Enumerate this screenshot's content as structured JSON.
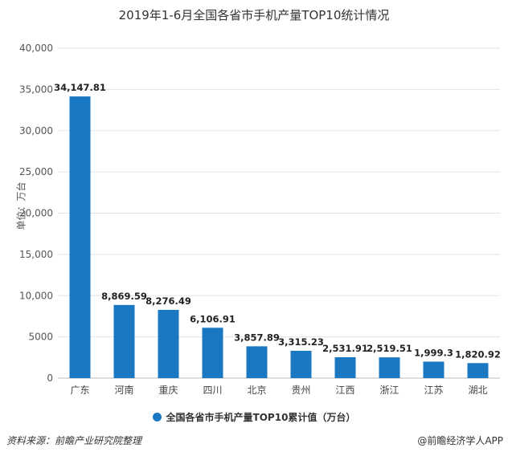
{
  "chart_data": {
    "type": "bar",
    "title": "2019年1-6月全国各省市手机产量TOP10统计情况",
    "ylabel": "单位：万台",
    "xlabel": "",
    "categories": [
      "广东",
      "河南",
      "重庆",
      "四川",
      "北京",
      "贵州",
      "江西",
      "浙江",
      "江苏",
      "湖北"
    ],
    "series": [
      {
        "name": "全国各省市手机产量TOP10累计值（万台）",
        "values": [
          34147.81,
          8869.59,
          8276.49,
          6106.91,
          3857.89,
          3315.23,
          2531.91,
          2519.51,
          1999.3,
          1820.92
        ],
        "labels": [
          "34,147.81",
          "8,869.59",
          "8,276.49",
          "6,106.91",
          "3,857.89",
          "3,315.23",
          "2,531.91",
          "2,519.51",
          "1,999.3",
          "1,820.92"
        ],
        "color": "#1a78c2"
      }
    ],
    "ylim": [
      0,
      40000
    ],
    "yticks": [
      {
        "value": 0,
        "label": "0"
      },
      {
        "value": 5000,
        "label": "5000"
      },
      {
        "value": 10000,
        "label": "10,000"
      },
      {
        "value": 15000,
        "label": "15,000"
      },
      {
        "value": 20000,
        "label": "20,000"
      },
      {
        "value": 25000,
        "label": "25,000"
      },
      {
        "value": 30000,
        "label": "30,000"
      },
      {
        "value": 35000,
        "label": "35,000"
      },
      {
        "value": 40000,
        "label": "40,000"
      }
    ],
    "grid": true,
    "legend_position": "bottom"
  },
  "footer": {
    "source": "资料来源：前瞻产业研究院整理",
    "credit": "@前瞻经济学人APP"
  }
}
